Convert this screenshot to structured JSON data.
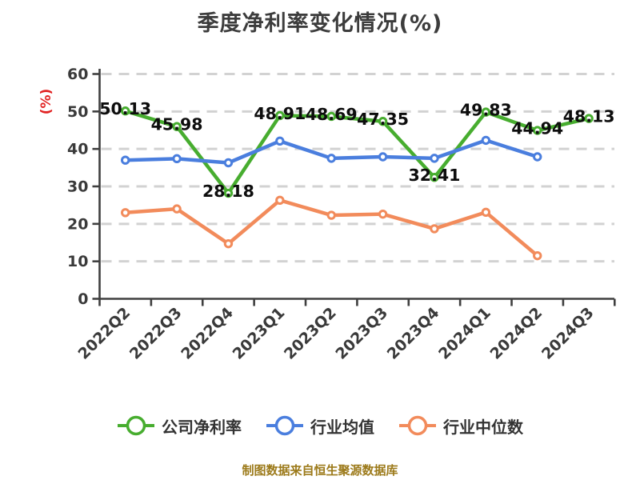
{
  "title": "季度净利率变化情况(%)",
  "y_axis_label": "(%)",
  "footer_note": "制图数据来自恒生聚源数据库",
  "colors": {
    "company": "#47ad2f",
    "industry_avg": "#4a7ede",
    "industry_median": "#f28b5b",
    "title": "#3c3c3c",
    "axis": "#3f3f3f",
    "grid": "#d2d2d2",
    "tick_text": "#3a3a3a",
    "data_label": "#0d0d0d",
    "y_unit": "#e12222",
    "footer": "#9c7a1a",
    "legend_text": "#333333",
    "marker_fill": "#ffffff"
  },
  "chart_data": {
    "type": "line",
    "title": "季度净利率变化情况(%)",
    "xlabel": "",
    "ylabel": "(%)",
    "ylim": [
      0,
      60
    ],
    "yticks": [
      0,
      10,
      20,
      30,
      40,
      50,
      60
    ],
    "grid": "horizontal-dashed",
    "legend_position": "bottom",
    "categories": [
      "2022Q2",
      "2022Q3",
      "2022Q4",
      "2023Q1",
      "2023Q2",
      "2023Q3",
      "2023Q4",
      "2024Q1",
      "2024Q2",
      "2024Q3"
    ],
    "series": [
      {
        "key": "company",
        "name": "公司净利率",
        "color": "#47ad2f",
        "show_value_labels": true,
        "values": [
          50.13,
          45.98,
          28.18,
          48.91,
          48.69,
          47.35,
          32.41,
          49.83,
          44.94,
          48.13
        ]
      },
      {
        "key": "industry_avg",
        "name": "行业均值",
        "color": "#4a7ede",
        "show_value_labels": false,
        "values": [
          37.0,
          37.4,
          36.3,
          42.1,
          37.5,
          37.9,
          37.5,
          42.3,
          37.9,
          null
        ]
      },
      {
        "key": "industry_median",
        "name": "行业中位数",
        "color": "#f28b5b",
        "show_value_labels": false,
        "values": [
          23.0,
          24.0,
          14.7,
          26.3,
          22.3,
          22.6,
          18.7,
          23.1,
          11.5,
          null
        ]
      }
    ]
  }
}
